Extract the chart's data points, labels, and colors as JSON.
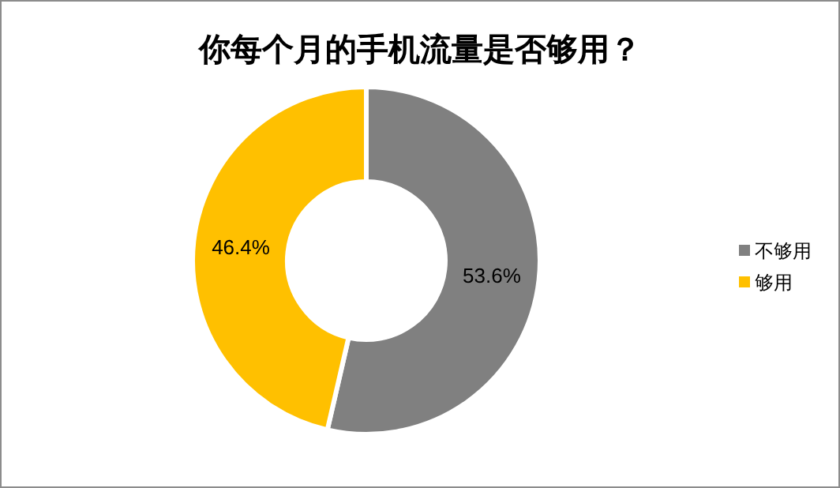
{
  "chart_data": {
    "type": "donut",
    "title": "你每个月的手机流量是否够用？",
    "categories": [
      "不够用",
      "够用"
    ],
    "values": [
      53.6,
      46.4
    ],
    "colors": [
      "#808080",
      "#ffc000"
    ],
    "value_labels": [
      "53.6%",
      "46.4%"
    ],
    "legend": "right"
  }
}
